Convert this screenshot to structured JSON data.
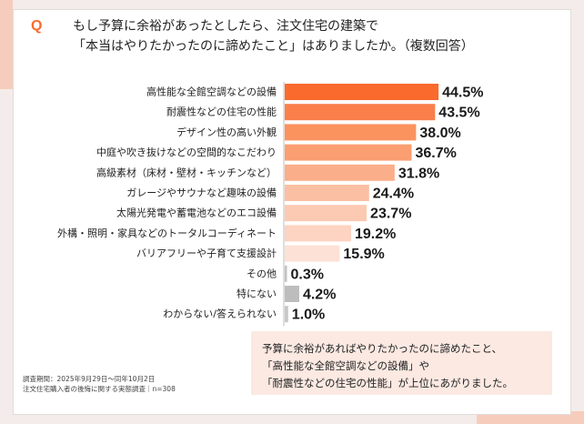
{
  "question": {
    "mark": "Q",
    "line1": "もし予算に余裕があったとしたら、注文住宅の建築で",
    "line2": "「本当はやりたかったのに諦めたこと」はありましたか。（複数回答）"
  },
  "chart_data": {
    "type": "bar",
    "orientation": "horizontal",
    "categories": [
      "高性能な全館空調などの設備",
      "耐震性などの住宅の性能",
      "デザイン性の高い外観",
      "中庭や吹き抜けなどの空間的なこだわり",
      "高級素材（床材・壁材・キッチンなど）",
      "ガレージやサウナなど趣味の設備",
      "太陽光発電や蓄電池などのエコ設備",
      "外構・照明・家具などのトータルコーディネート",
      "バリアフリーや子育て支援設計",
      "その他",
      "特にない",
      "わからない/答えられない"
    ],
    "values": [
      44.5,
      43.5,
      38.0,
      36.7,
      31.8,
      24.4,
      23.7,
      19.2,
      15.9,
      0.3,
      4.2,
      1.0
    ],
    "value_labels": [
      "44.5%",
      "43.5%",
      "38.0%",
      "36.7%",
      "31.8%",
      "24.4%",
      "23.7%",
      "19.2%",
      "15.9%",
      "0.3%",
      "4.2%",
      "1.0%"
    ],
    "units": "%",
    "xlim": [
      0,
      100
    ],
    "colors": [
      "#fa6a2c",
      "#fa7f4a",
      "#fb935f",
      "#fb9e72",
      "#fbae8a",
      "#fbbfa3",
      "#fcc9b2",
      "#fdd3c1",
      "#fde1d6",
      "#c2c2c2",
      "#bdbdbd",
      "#c8c8c8"
    ]
  },
  "note": {
    "line1": "予算に余裕があればやりたかったのに諦めたこと、",
    "line2": "「高性能な全館空調などの設備」や",
    "line3": "「耐震性などの住宅の性能」が上位にあがりました。"
  },
  "source": {
    "line1": "調査期間：2025年9月29日～同年10月2日",
    "line2": "注文住宅購入者の後悔に関する実態調査｜n=308"
  },
  "colors": {
    "accent": "#fa6a2c",
    "background": "#f3ecea",
    "deco": "#f6cdbd",
    "note_bg": "#fbe9e2",
    "axis": "#bdbdbd"
  }
}
